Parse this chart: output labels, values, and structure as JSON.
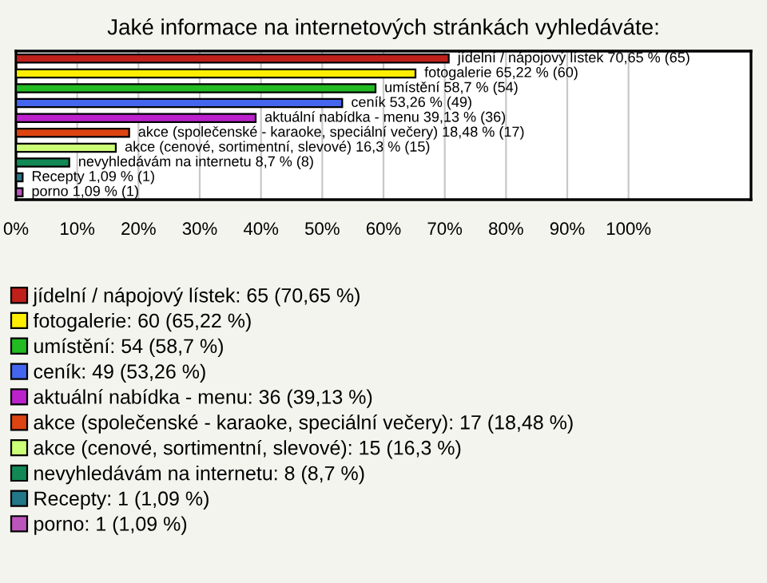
{
  "chart_data": {
    "type": "bar",
    "orientation": "horizontal",
    "title": "Jaké informace na internetových stránkách vyhledáváte:",
    "categories": [
      null,
      null,
      null,
      null,
      null,
      null,
      null,
      null,
      null,
      null
    ],
    "series": [
      {
        "name": "jídelní / nápojový lístek: 65 (70,65 %)",
        "color": "#c0201a",
        "values": [
          70.65,
          null,
          null,
          null,
          null,
          null,
          null,
          null,
          null,
          null
        ],
        "value_labels": [
          "jídelní / nápojový lístek 70,65 % (65)",
          null,
          null,
          null,
          null,
          null,
          null,
          null,
          null,
          null
        ]
      },
      {
        "name": "fotogalerie: 60 (65,22 %)",
        "color": "#ffee00",
        "values": [
          null,
          65.22,
          null,
          null,
          null,
          null,
          null,
          null,
          null,
          null
        ],
        "value_labels": [
          null,
          "fotogalerie 65,22 % (60)",
          null,
          null,
          null,
          null,
          null,
          null,
          null,
          null
        ]
      },
      {
        "name": "umístění: 54 (58,7 %)",
        "color": "#22bb22",
        "values": [
          null,
          null,
          58.7,
          null,
          null,
          null,
          null,
          null,
          null,
          null
        ],
        "value_labels": [
          null,
          null,
          "umístění 58,7 % (54)",
          null,
          null,
          null,
          null,
          null,
          null,
          null
        ]
      },
      {
        "name": "ceník: 49 (53,26 %)",
        "color": "#4466ee",
        "values": [
          null,
          null,
          null,
          53.26,
          null,
          null,
          null,
          null,
          null,
          null
        ],
        "value_labels": [
          null,
          null,
          null,
          "ceník 53,26 % (49)",
          null,
          null,
          null,
          null,
          null,
          null
        ]
      },
      {
        "name": "aktuální nabídka - menu: 36 (39,13 %)",
        "color": "#bb22cc",
        "values": [
          null,
          null,
          null,
          null,
          39.13,
          null,
          null,
          null,
          null,
          null
        ],
        "value_labels": [
          null,
          null,
          null,
          null,
          "aktuální nabídka - menu 39,13 % (36)",
          null,
          null,
          null,
          null,
          null
        ]
      },
      {
        "name": "akce (společenské - karaoke, speciální večery): 17 (18,48 %)",
        "color": "#dd4411",
        "values": [
          null,
          null,
          null,
          null,
          null,
          18.48,
          null,
          null,
          null,
          null
        ],
        "value_labels": [
          null,
          null,
          null,
          null,
          null,
          "akce (společenské - karaoke, speciální večery) 18,48 % (17)",
          null,
          null,
          null,
          null
        ]
      },
      {
        "name": "akce (cenové, sortimentní, slevové): 15 (16,3 %)",
        "color": "#ccff77",
        "values": [
          null,
          null,
          null,
          null,
          null,
          null,
          16.3,
          null,
          null,
          null
        ],
        "value_labels": [
          null,
          null,
          null,
          null,
          null,
          null,
          "akce (cenové, sortimentní, slevové) 16,3 % (15)",
          null,
          null,
          null
        ]
      },
      {
        "name": "nevyhledávám na internetu: 8 (8,7 %)",
        "color": "#118855",
        "values": [
          null,
          null,
          null,
          null,
          null,
          null,
          null,
          8.7,
          null,
          null
        ],
        "value_labels": [
          null,
          null,
          null,
          null,
          null,
          null,
          null,
          "nevyhledávám na internetu 8,7 % (8)",
          null,
          null
        ]
      },
      {
        "name": "Recepty: 1 (1,09 %)",
        "color": "#227788",
        "values": [
          null,
          null,
          null,
          null,
          null,
          null,
          null,
          null,
          1.09,
          null
        ],
        "value_labels": [
          null,
          null,
          null,
          null,
          null,
          null,
          null,
          null,
          "Recepty 1,09 % (1)",
          null
        ]
      },
      {
        "name": "porno: 1 (1,09 %)",
        "color": "#bb55bb",
        "values": [
          null,
          null,
          null,
          null,
          null,
          null,
          null,
          null,
          null,
          1.09
        ],
        "value_labels": [
          null,
          null,
          null,
          null,
          null,
          null,
          null,
          null,
          null,
          "porno 1,09 % (1)"
        ]
      }
    ],
    "xlim": [
      0,
      120
    ],
    "xticks": [
      {
        "value": 0,
        "label": "0%"
      },
      {
        "value": 10,
        "label": "10%"
      },
      {
        "value": 20,
        "label": "20%"
      },
      {
        "value": 30,
        "label": "30%"
      },
      {
        "value": 40,
        "label": "40%"
      },
      {
        "value": 50,
        "label": "50%"
      },
      {
        "value": 60,
        "label": "60%"
      },
      {
        "value": 70,
        "label": "70%"
      },
      {
        "value": 80,
        "label": "80%"
      },
      {
        "value": 90,
        "label": "90%"
      },
      {
        "value": 100,
        "label": "100%"
      }
    ],
    "grid": "x",
    "legend": "bottom left"
  }
}
